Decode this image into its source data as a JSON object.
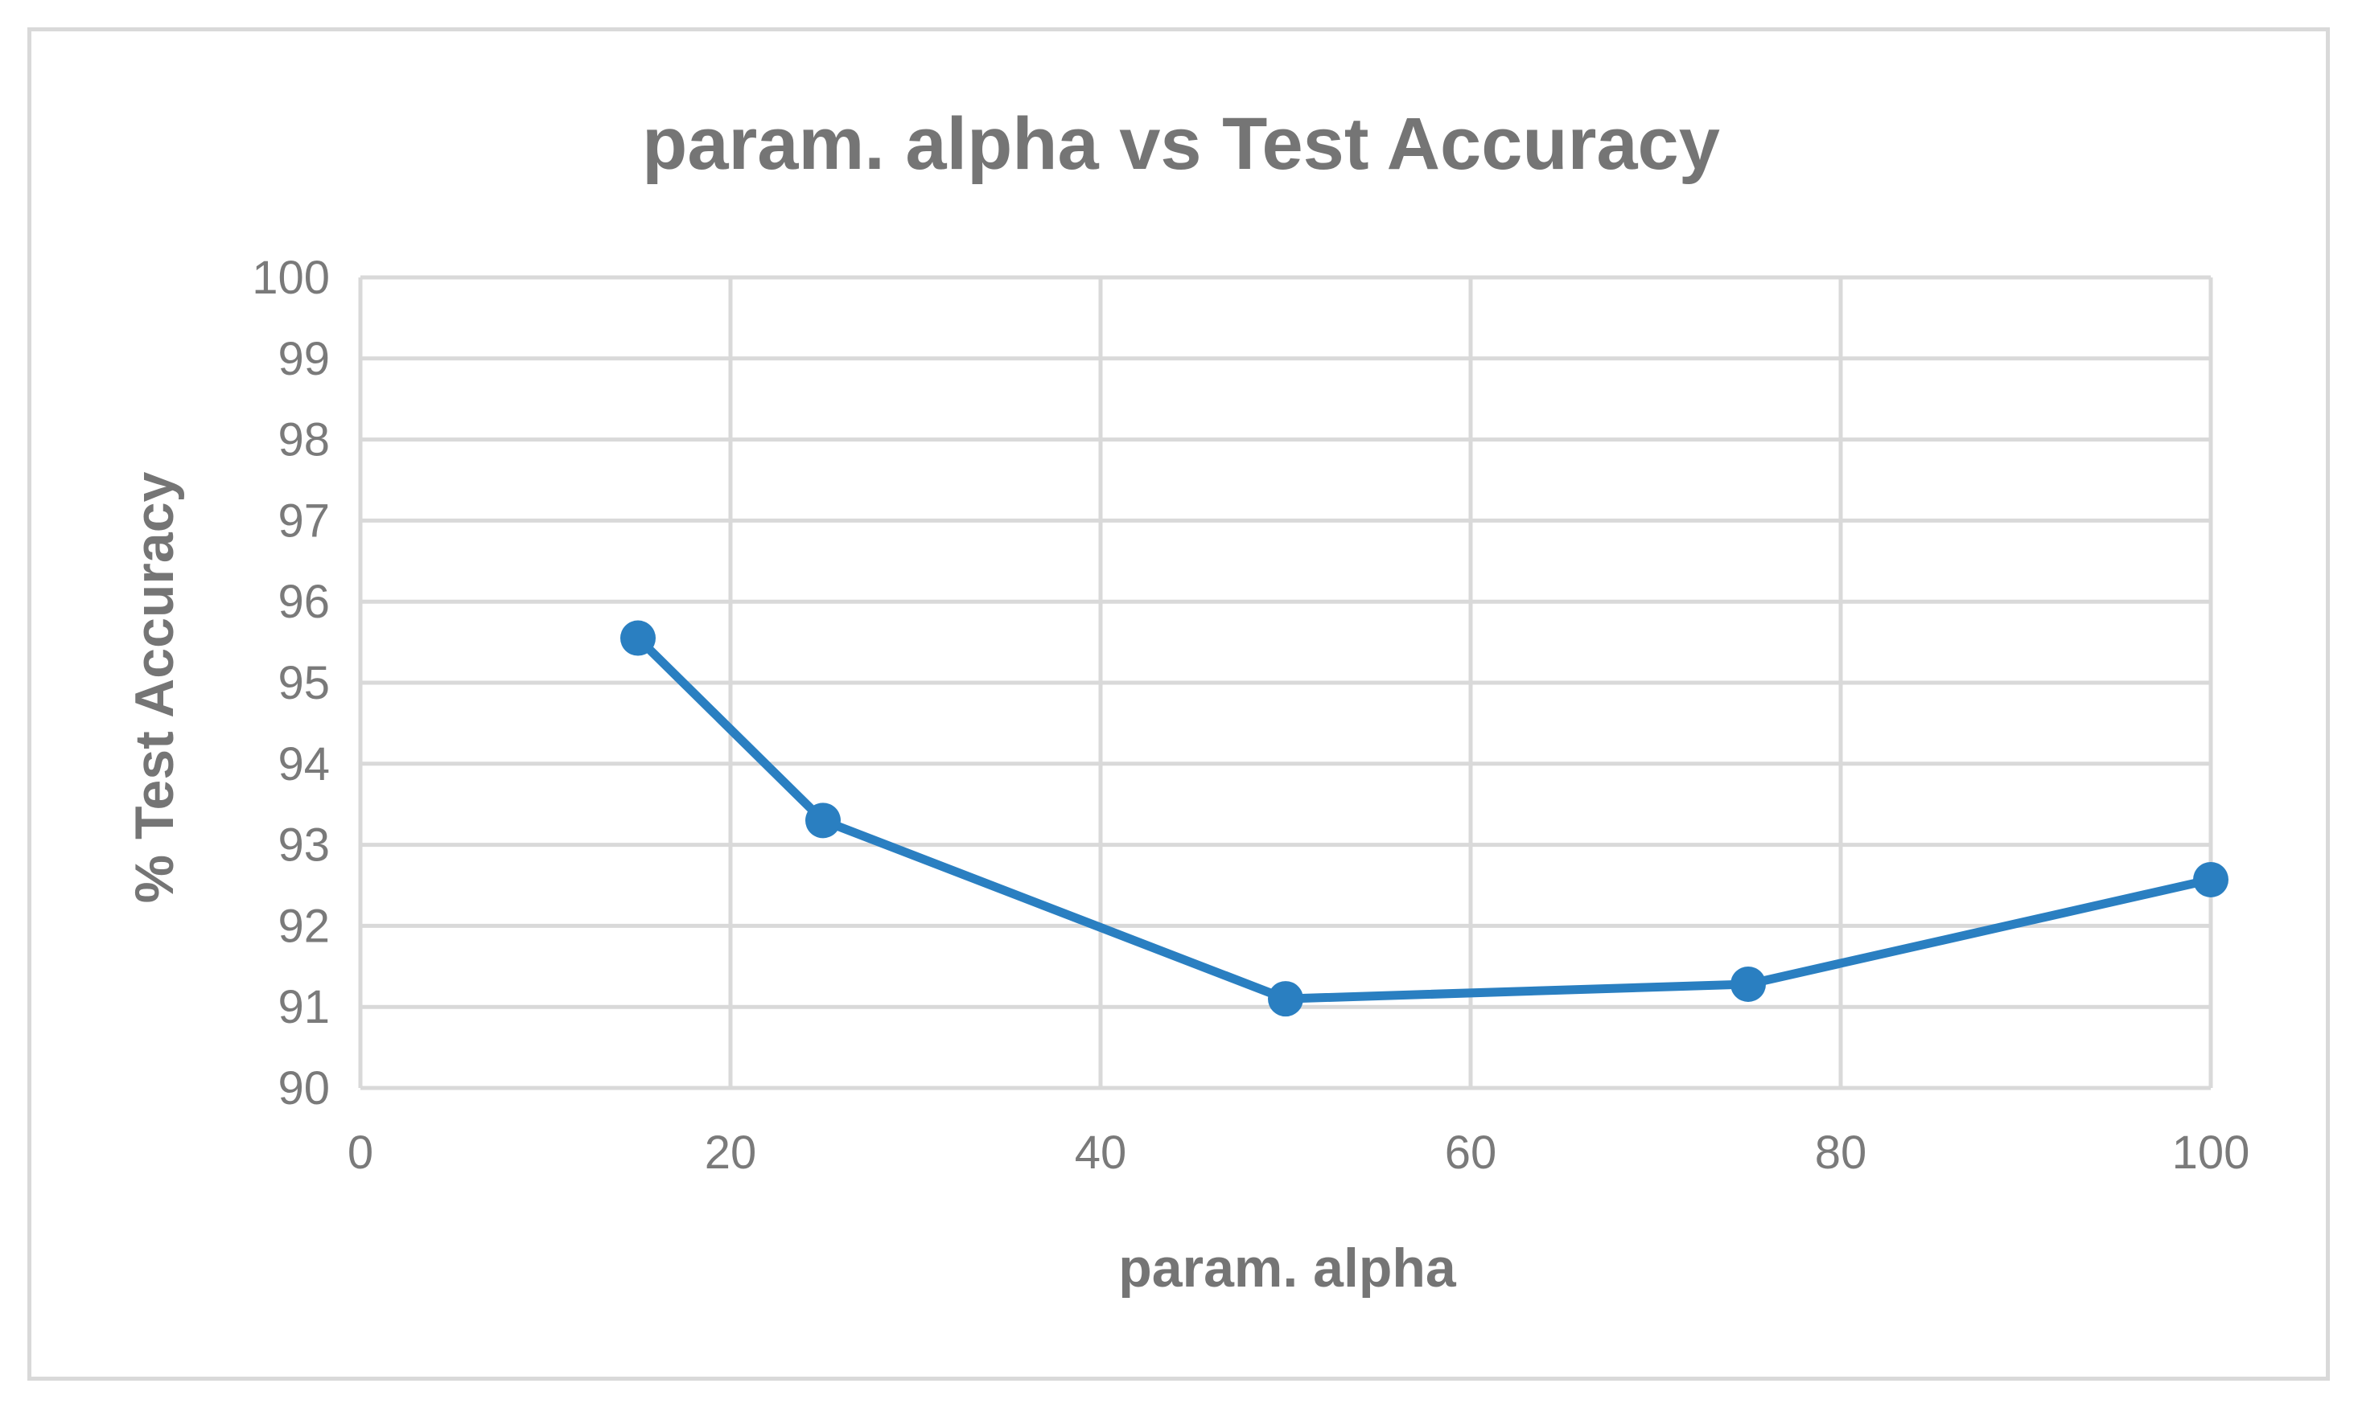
{
  "chart_data": {
    "type": "line",
    "title": "param. alpha vs Test Accuracy",
    "xlabel": "param. alpha",
    "ylabel": "% Test Accuracy",
    "xlim": [
      0,
      100
    ],
    "ylim": [
      90,
      100
    ],
    "x_ticks": [
      0,
      20,
      40,
      60,
      80,
      100
    ],
    "y_ticks": [
      90,
      91,
      92,
      93,
      94,
      95,
      96,
      97,
      98,
      99,
      100
    ],
    "grid": true,
    "series": [
      {
        "x": [
          15,
          25,
          50,
          75,
          100
        ],
        "y": [
          95.55,
          93.3,
          91.1,
          91.28,
          92.57
        ],
        "color": "#2a7fc1"
      }
    ]
  }
}
